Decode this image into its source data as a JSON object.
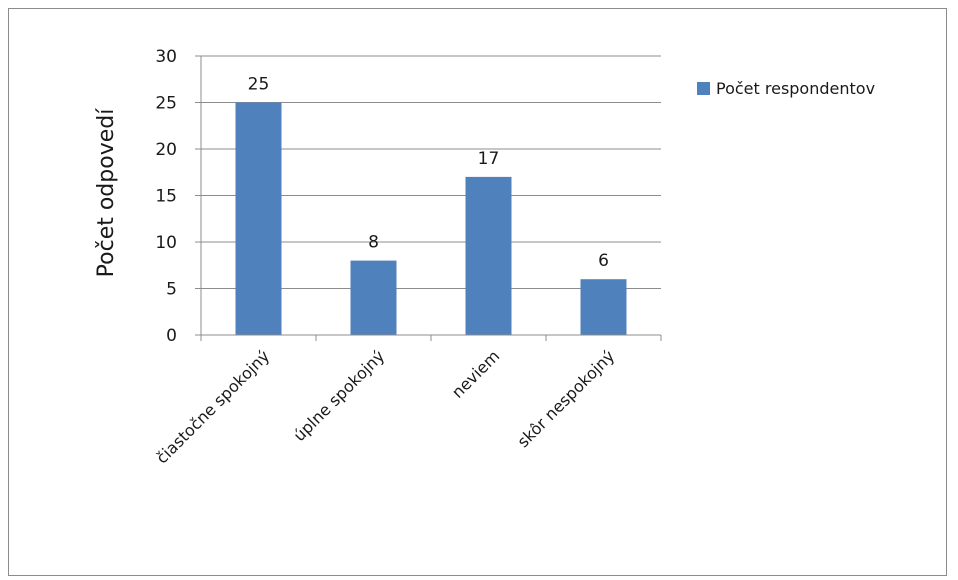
{
  "chart_data": {
    "type": "bar",
    "categories": [
      "čiastočne spokojný",
      "úplne spokojný",
      "neviem",
      "skôr nespokojný"
    ],
    "series": [
      {
        "name": "Počet respondentov",
        "values": [
          25,
          8,
          17,
          6
        ],
        "color": "#4f81bd"
      }
    ],
    "ylabel": "Počet odpovedí",
    "xlabel": "",
    "ylim": [
      0,
      30
    ],
    "yticks": [
      0,
      5,
      10,
      15,
      20,
      25,
      30
    ],
    "grid": true,
    "legend": "right",
    "data_labels": [
      "25",
      "8",
      "17",
      "6"
    ]
  }
}
